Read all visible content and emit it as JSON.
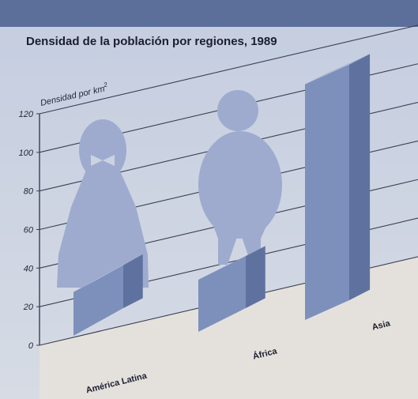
{
  "chart_data": {
    "type": "bar",
    "title": "Densidad de la población por regiones, 1989",
    "ylabel": "Densidad por km",
    "ylabel_superscript": "2",
    "ylim": [
      0,
      120
    ],
    "yticks": [
      "0",
      "20",
      "40",
      "60",
      "80",
      "100",
      "120"
    ],
    "categories": [
      "América Latina",
      "África",
      "Asia"
    ],
    "values": [
      21,
      25,
      130
    ],
    "grid": true,
    "colors": {
      "banner": "#5c6f9a",
      "background": "#cbd3e1",
      "floor": "#e4e1dd",
      "grid": "#3a3f52",
      "bar_front": "#7d90bb",
      "bar_top": "#aebbd6",
      "bar_side": "#5f729f",
      "figure": "#9eabcf"
    }
  }
}
